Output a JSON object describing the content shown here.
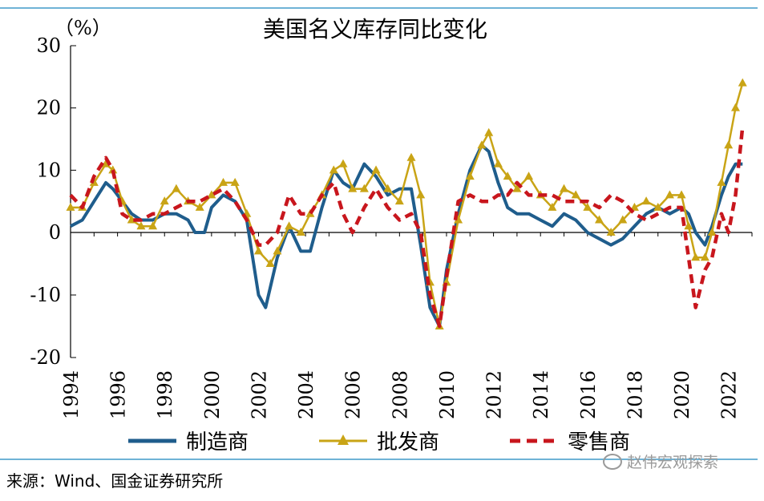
{
  "chart_data": {
    "type": "line",
    "title": "美国名义库存同比变化",
    "unit_label": "（%）",
    "ylim": [
      -20,
      30
    ],
    "yticks": [
      -20,
      -10,
      0,
      10,
      20,
      30
    ],
    "xlim": [
      1994,
      2023
    ],
    "xticks": [
      "1994",
      "1996",
      "1998",
      "2000",
      "2002",
      "2004",
      "2006",
      "2008",
      "2010",
      "2012",
      "2014",
      "2016",
      "2018",
      "2020",
      "2022"
    ],
    "legend": {
      "position": "bottom"
    },
    "grid": false,
    "series": [
      {
        "name": "制造商",
        "color": "#1f5d8c",
        "style": "solid",
        "x": [
          1994,
          1994.5,
          1995,
          1995.5,
          1995.8,
          1996.2,
          1996.6,
          1997,
          1997.5,
          1998,
          1998.5,
          1999,
          1999.3,
          1999.7,
          2000,
          2000.5,
          2001,
          2001.5,
          2002,
          2002.3,
          2002.8,
          2003.3,
          2003.8,
          2004.2,
          2004.7,
          2005.2,
          2005.6,
          2006,
          2006.5,
          2007,
          2007.5,
          2008,
          2008.5,
          2008.9,
          2009.3,
          2009.7,
          2010,
          2010.5,
          2011,
          2011.5,
          2011.8,
          2012.2,
          2012.6,
          2013,
          2013.5,
          2014,
          2014.5,
          2015,
          2015.5,
          2016,
          2016.5,
          2017,
          2017.5,
          2018,
          2018.5,
          2019,
          2019.5,
          2020,
          2020.3,
          2020.6,
          2021,
          2021.3,
          2021.7,
          2022,
          2022.3,
          2022.6
        ],
        "y": [
          1,
          2,
          5,
          8,
          7,
          5,
          3,
          2,
          2,
          3,
          3,
          2,
          0,
          0,
          4,
          6,
          5,
          2,
          -10,
          -12,
          -4,
          1,
          -3,
          -3,
          4,
          10,
          8,
          7,
          11,
          9,
          6,
          7,
          7,
          -2,
          -12,
          -15,
          -6,
          3,
          10,
          14,
          13,
          8,
          4,
          3,
          3,
          2,
          1,
          3,
          2,
          0,
          -1,
          -2,
          -1,
          1,
          3,
          4,
          3,
          4,
          3,
          0,
          -2,
          1,
          6,
          9,
          11,
          11
        ]
      },
      {
        "name": "批发商",
        "color": "#c9a416",
        "style": "solid-triangle",
        "x": [
          1994,
          1994.5,
          1995,
          1995.5,
          1995.8,
          1996.2,
          1996.6,
          1997,
          1997.5,
          1998,
          1998.5,
          1999,
          1999.5,
          2000,
          2000.5,
          2001,
          2001.5,
          2002,
          2002.5,
          2002.8,
          2003.3,
          2003.8,
          2004.2,
          2004.7,
          2005.2,
          2005.6,
          2006,
          2006.5,
          2007,
          2007.5,
          2008,
          2008.5,
          2008.9,
          2009.3,
          2009.7,
          2010,
          2010.5,
          2011,
          2011.5,
          2011.8,
          2012.2,
          2012.6,
          2013,
          2013.5,
          2014,
          2014.5,
          2015,
          2015.5,
          2016,
          2016.5,
          2017,
          2017.5,
          2018,
          2018.5,
          2019,
          2019.5,
          2020,
          2020.3,
          2020.6,
          2021,
          2021.3,
          2021.7,
          2022,
          2022.3,
          2022.6
        ],
        "y": [
          4,
          4,
          8,
          11,
          10,
          5,
          2,
          1,
          1,
          5,
          7,
          5,
          4,
          6,
          8,
          8,
          3,
          -3,
          -5,
          -3,
          1,
          0,
          3,
          6,
          10,
          11,
          7,
          7,
          10,
          7,
          5,
          12,
          6,
          -8,
          -15,
          -8,
          2,
          9,
          14,
          16,
          11,
          9,
          7,
          9,
          6,
          4,
          7,
          6,
          4,
          2,
          0,
          2,
          4,
          5,
          4,
          6,
          6,
          1,
          -4,
          -4,
          0,
          8,
          14,
          20,
          24
        ]
      },
      {
        "name": "零售商",
        "color": "#c8161d",
        "style": "dashed",
        "x": [
          1994,
          1994.5,
          1995,
          1995.5,
          1995.8,
          1996.2,
          1996.6,
          1997,
          1997.5,
          1998,
          1998.5,
          1999,
          1999.5,
          2000,
          2000.5,
          2001,
          2001.5,
          2002,
          2002.3,
          2002.8,
          2003.3,
          2003.8,
          2004.2,
          2004.7,
          2005.2,
          2005.6,
          2006,
          2006.5,
          2007,
          2007.5,
          2008,
          2008.5,
          2008.9,
          2009.3,
          2009.7,
          2010,
          2010.5,
          2011,
          2011.5,
          2011.8,
          2012.2,
          2012.6,
          2013,
          2013.5,
          2014,
          2014.5,
          2015,
          2015.5,
          2016,
          2016.5,
          2017,
          2017.5,
          2018,
          2018.5,
          2019,
          2019.5,
          2020,
          2020.3,
          2020.6,
          2021,
          2021.3,
          2021.7,
          2022,
          2022.3,
          2022.6
        ],
        "y": [
          6,
          4,
          9,
          12,
          10,
          3,
          2,
          2,
          3,
          3,
          4,
          5,
          5,
          6,
          7,
          5,
          2,
          -2,
          -2,
          0,
          6,
          3,
          3,
          6,
          8,
          3,
          0,
          4,
          7,
          4,
          2,
          3,
          0,
          -10,
          -15,
          -7,
          5,
          6,
          5,
          5,
          6,
          6,
          8,
          6,
          6,
          6,
          5,
          5,
          5,
          4,
          6,
          5,
          3,
          2,
          3,
          4,
          4,
          -4,
          -12,
          -6,
          -4,
          3,
          0,
          6,
          17
        ]
      }
    ],
    "source": "来源：Wind、国金证券研究所",
    "watermark": "赵伟宏观探索"
  }
}
